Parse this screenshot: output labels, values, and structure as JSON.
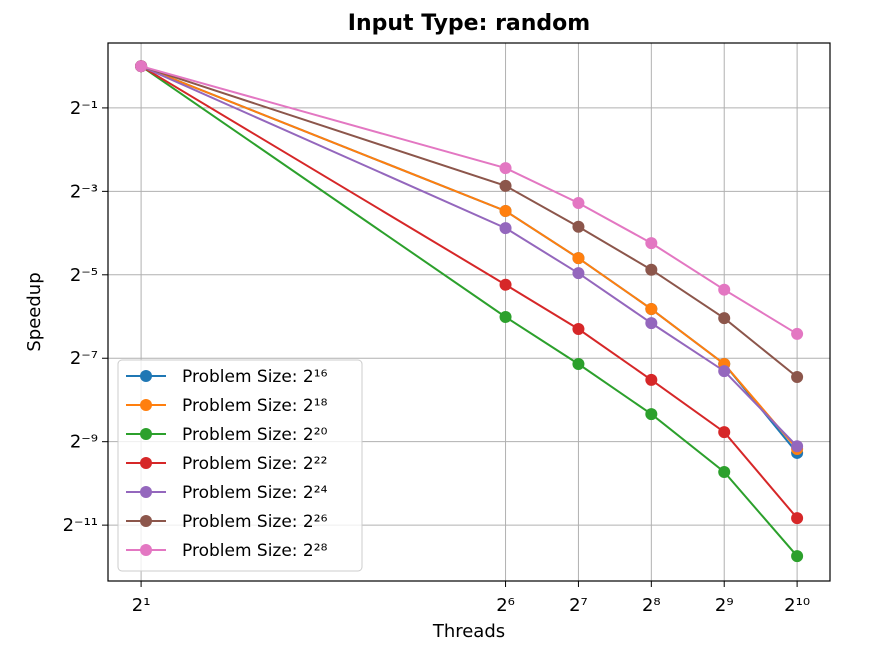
{
  "chart_data": {
    "type": "line",
    "title": "Input Type: random",
    "x_label": "Threads",
    "y_label": "Speedup",
    "x": [
      2,
      64,
      128,
      256,
      512,
      1024
    ],
    "xscale": "log",
    "yscale": "log",
    "grid": true,
    "legend": "lower left",
    "xlim": [
      1.46,
      1400
    ],
    "ylim": [
      0.000193,
      1.47
    ],
    "xticks": [
      {
        "value": 2,
        "label": "2¹"
      },
      {
        "value": 64,
        "label": "2⁶"
      },
      {
        "value": 128,
        "label": "2⁷"
      },
      {
        "value": 256,
        "label": "2⁸"
      },
      {
        "value": 512,
        "label": "2⁹"
      },
      {
        "value": 1024,
        "label": "2¹⁰"
      }
    ],
    "yticks": [
      {
        "value": 0.5,
        "label": "2⁻¹"
      },
      {
        "value": 0.125,
        "label": "2⁻³"
      },
      {
        "value": 0.03125,
        "label": "2⁻⁵"
      },
      {
        "value": 0.0078125,
        "label": "2⁻⁷"
      },
      {
        "value": 0.001953125,
        "label": "2⁻⁹"
      },
      {
        "value": 0.00048828125,
        "label": "2⁻¹¹"
      }
    ],
    "series": [
      {
        "name": "Problem Size: 2¹⁶",
        "color": "#1f77b4",
        "values": [
          1,
          0.0902,
          0.0412,
          0.0177,
          0.0071,
          0.00162
        ]
      },
      {
        "name": "Problem Size: 2¹⁸",
        "color": "#ff7f0e",
        "values": [
          1,
          0.0902,
          0.0412,
          0.0177,
          0.0071,
          0.00173
        ]
      },
      {
        "name": "Problem Size: 2²⁰",
        "color": "#2ca02c",
        "values": [
          1,
          0.0155,
          0.0071,
          0.00309,
          0.00118,
          0.000292
        ]
      },
      {
        "name": "Problem Size: 2²²",
        "color": "#d62728",
        "values": [
          1,
          0.0265,
          0.0127,
          0.00545,
          0.00229,
          0.000549
        ]
      },
      {
        "name": "Problem Size: 2²⁴",
        "color": "#9467bd",
        "values": [
          1,
          0.0679,
          0.0321,
          0.014,
          0.00631,
          0.00181
        ]
      },
      {
        "name": "Problem Size: 2²⁶",
        "color": "#8c564b",
        "values": [
          1,
          0.137,
          0.0694,
          0.034,
          0.0152,
          0.00572
        ]
      },
      {
        "name": "Problem Size: 2²⁸",
        "color": "#e377c2",
        "values": [
          1,
          0.184,
          0.103,
          0.0529,
          0.0244,
          0.0117
        ]
      }
    ]
  }
}
